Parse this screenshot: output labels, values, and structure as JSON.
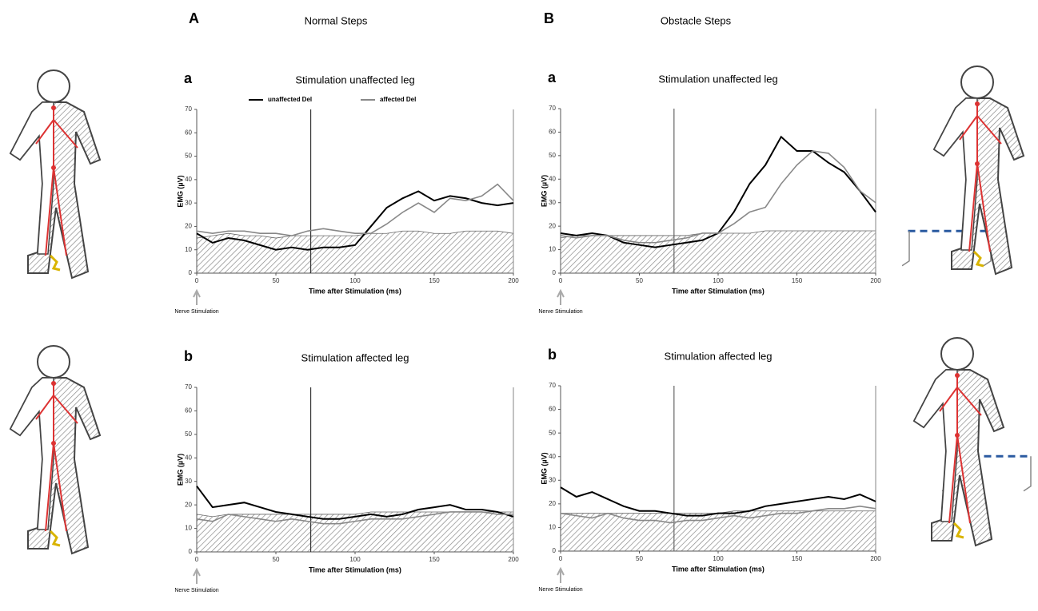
{
  "columns": [
    {
      "letter": "A",
      "title": "Normal Steps"
    },
    {
      "letter": "B",
      "title": "Obstacle Steps"
    }
  ],
  "chart_data": [
    {
      "type": "line",
      "panel": "a",
      "title": "Stimulation unaffected leg",
      "ylabel": "EMG (µV)",
      "xlabel": "Time after Stimulation (ms)",
      "annotation": "Nerve Stimulation",
      "xlim": [
        0,
        200
      ],
      "ylim": [
        0,
        70
      ],
      "xticks": [
        0,
        50,
        100,
        150,
        200
      ],
      "yticks": [
        0,
        10,
        20,
        30,
        40,
        50,
        60,
        70
      ],
      "vlines": [
        72,
        200
      ],
      "vline_color": "#333",
      "legend": true,
      "x": [
        0,
        10,
        20,
        30,
        40,
        50,
        60,
        70,
        80,
        90,
        100,
        110,
        120,
        130,
        140,
        150,
        160,
        170,
        180,
        190,
        200
      ],
      "background": [
        15,
        16,
        17,
        16,
        16,
        15,
        16,
        16,
        16,
        16,
        16,
        17,
        17,
        18,
        18,
        17,
        17,
        18,
        18,
        18,
        17
      ],
      "series": [
        {
          "name": "unaffected Del",
          "color": "#000",
          "values": [
            17,
            13,
            15,
            14,
            12,
            10,
            11,
            10,
            11,
            11,
            12,
            20,
            28,
            32,
            35,
            31,
            33,
            32,
            30,
            29,
            30
          ]
        },
        {
          "name": "affected Del",
          "color": "#888",
          "values": [
            18,
            17,
            18,
            18,
            17,
            17,
            16,
            18,
            19,
            18,
            17,
            17,
            21,
            26,
            30,
            26,
            32,
            31,
            33,
            38,
            31
          ]
        }
      ]
    },
    {
      "type": "line",
      "panel": "a",
      "title": "Stimulation unaffected leg",
      "ylabel": "EMG (µV)",
      "xlabel": "Time after Stimulation (ms)",
      "annotation": "Nerve Stimulation",
      "xlim": [
        0,
        200
      ],
      "ylim": [
        0,
        70
      ],
      "xticks": [
        0,
        50,
        100,
        150,
        200
      ],
      "yticks": [
        0,
        10,
        20,
        30,
        40,
        50,
        60,
        70
      ],
      "vlines": [
        72,
        200
      ],
      "vline_color": "#666",
      "legend": false,
      "x": [
        0,
        10,
        20,
        30,
        40,
        50,
        60,
        70,
        80,
        90,
        100,
        110,
        120,
        130,
        140,
        150,
        160,
        170,
        180,
        190,
        200
      ],
      "background": [
        15,
        16,
        16,
        16,
        16,
        16,
        16,
        16,
        16,
        17,
        17,
        17,
        17,
        18,
        18,
        18,
        18,
        18,
        18,
        18,
        18
      ],
      "series": [
        {
          "color": "#000",
          "values": [
            17,
            16,
            17,
            16,
            13,
            12,
            11,
            12,
            13,
            14,
            17,
            26,
            38,
            46,
            58,
            52,
            52,
            47,
            43,
            35,
            26
          ]
        },
        {
          "color": "#888",
          "values": [
            16,
            15,
            16,
            16,
            14,
            13,
            13,
            14,
            15,
            17,
            17,
            21,
            26,
            28,
            38,
            46,
            52,
            51,
            45,
            35,
            30
          ]
        }
      ]
    },
    {
      "type": "line",
      "panel": "b",
      "title": "Stimulation affected leg",
      "ylabel": "EMG (µV)",
      "xlabel": "Time after Stimulation (ms)",
      "annotation": "Nerve Stimulation",
      "xlim": [
        0,
        200
      ],
      "ylim": [
        0,
        70
      ],
      "xticks": [
        0,
        50,
        100,
        150,
        200
      ],
      "yticks": [
        0,
        10,
        20,
        30,
        40,
        50,
        60,
        70
      ],
      "vlines": [
        72,
        200
      ],
      "vline_color": "#333",
      "legend": false,
      "x": [
        0,
        10,
        20,
        30,
        40,
        50,
        60,
        70,
        80,
        90,
        100,
        110,
        120,
        130,
        140,
        150,
        160,
        170,
        180,
        190,
        200
      ],
      "background": [
        16,
        15,
        16,
        16,
        16,
        16,
        16,
        16,
        16,
        16,
        16,
        17,
        17,
        17,
        17,
        17,
        17,
        17,
        17,
        17,
        17
      ],
      "series": [
        {
          "color": "#000",
          "values": [
            28,
            19,
            20,
            21,
            19,
            17,
            16,
            15,
            14,
            14,
            15,
            16,
            15,
            16,
            18,
            19,
            20,
            18,
            18,
            17,
            15
          ]
        },
        {
          "color": "#888",
          "values": [
            14,
            13,
            16,
            15,
            14,
            13,
            14,
            13,
            12,
            12,
            13,
            14,
            14,
            14,
            15,
            16,
            17,
            17,
            17,
            16,
            16
          ]
        }
      ]
    },
    {
      "type": "line",
      "panel": "b",
      "title": "Stimulation affected leg",
      "ylabel": "EMG (µV)",
      "xlabel": "Time after Stimulation (ms)",
      "annotation": "Nerve Stimulation",
      "xlim": [
        0,
        200
      ],
      "ylim": [
        0,
        70
      ],
      "xticks": [
        0,
        50,
        100,
        150,
        200
      ],
      "yticks": [
        0,
        10,
        20,
        30,
        40,
        50,
        60,
        70
      ],
      "vlines": [
        72,
        200
      ],
      "vline_color": "#666",
      "legend": false,
      "x": [
        0,
        10,
        20,
        30,
        40,
        50,
        60,
        70,
        80,
        90,
        100,
        110,
        120,
        130,
        140,
        150,
        160,
        170,
        180,
        190,
        200
      ],
      "background": [
        16,
        16,
        16,
        16,
        16,
        16,
        16,
        16,
        16,
        16,
        16,
        17,
        17,
        17,
        17,
        17,
        17,
        17,
        17,
        17,
        17
      ],
      "series": [
        {
          "color": "#000",
          "values": [
            27,
            23,
            25,
            22,
            19,
            17,
            17,
            16,
            15,
            15,
            16,
            16,
            17,
            19,
            20,
            21,
            22,
            23,
            22,
            24,
            21
          ]
        },
        {
          "color": "#888",
          "values": [
            16,
            15,
            14,
            16,
            14,
            13,
            13,
            12,
            13,
            13,
            14,
            15,
            14,
            15,
            16,
            16,
            17,
            18,
            18,
            19,
            18
          ]
        }
      ]
    }
  ]
}
